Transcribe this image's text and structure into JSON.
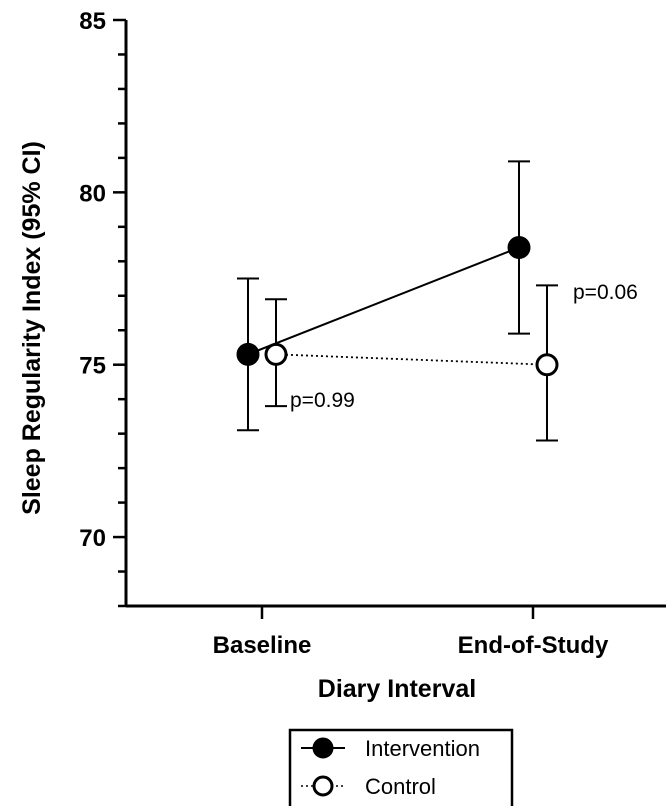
{
  "chart_data": {
    "type": "line",
    "title": "",
    "xlabel": "Diary Interval",
    "ylabel": "Sleep Regularity Index (95% CI)",
    "categories": [
      "Baseline",
      "End-of-Study"
    ],
    "ylim": [
      68,
      85
    ],
    "yticks": [
      "70",
      "75",
      "80",
      "85"
    ],
    "grid": false,
    "legend_position": "bottom",
    "series": [
      {
        "name": "Intervention",
        "marker": "filled-circle",
        "line_style": "solid",
        "color": "#000000",
        "values": [
          75.3,
          78.4
        ],
        "ci_low": [
          73.1,
          75.9
        ],
        "ci_high": [
          77.5,
          80.9
        ]
      },
      {
        "name": "Control",
        "marker": "open-circle",
        "line_style": "dotted",
        "color": "#000000",
        "values": [
          75.3,
          75.0
        ],
        "ci_low": [
          73.8,
          72.8
        ],
        "ci_high": [
          76.9,
          77.3
        ]
      }
    ],
    "annotations": [
      {
        "text": "p=0.99",
        "category": "Baseline"
      },
      {
        "text": "p=0.06",
        "category": "End-of-Study"
      }
    ]
  }
}
